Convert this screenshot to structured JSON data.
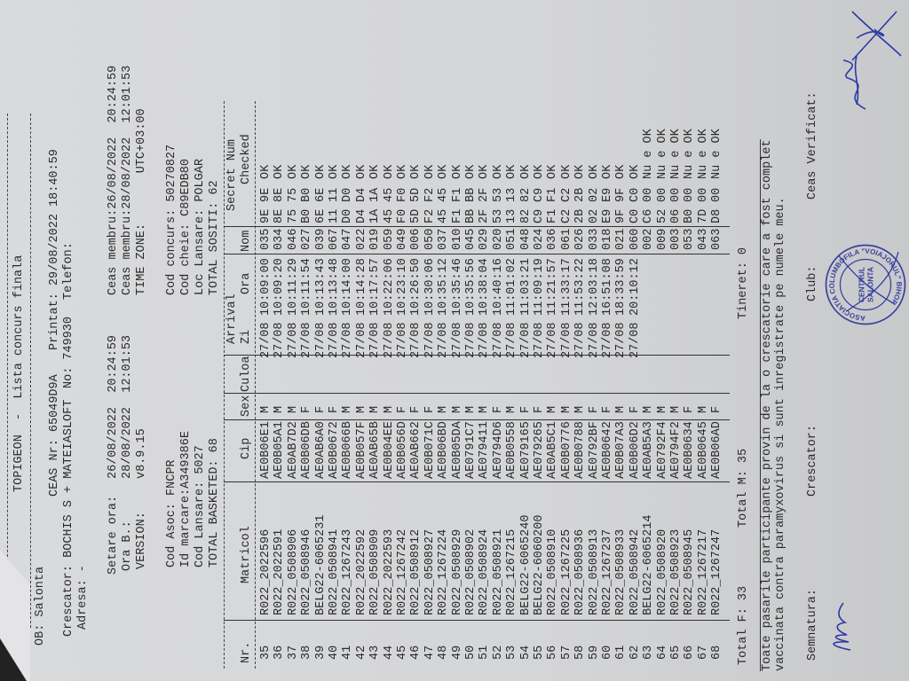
{
  "header": {
    "title": "TOPIGEON  -  Lista concurs finala",
    "club": "OB: Salonta",
    "crescator": "Crescator: BOCHIS S + MATEIASLOFT",
    "adresa": "Adresa: -",
    "ceas_nr": "CEAS Nr: 65049D9A",
    "no": "No: 749930",
    "printat": "Printat: 29/08/2022 18:40:59",
    "telefon": "Telefon:",
    "setare_ora_label": "Setare ora:",
    "setare_ora": "26/08/2022  20:24:59",
    "ora_b_label": "Ora B.:",
    "ora_b": "28/08/2022  12:01:53",
    "version_label": "VERSION:",
    "version": "v8.9.15",
    "ceas_membru_1": "Ceas membru:26/08/2022  20:24:59",
    "ceas_membru_2": "Ceas membru:28/08/2022  12:01:53",
    "time_zone": "TIME ZONE:       UTC+03:00",
    "cod_asoc": "Cod Asoc: FNCPR",
    "id_marcare": "Id marcare:A349386E",
    "cod_lansare": "Cod Lansare: 5027",
    "total_basketed": "TOTAL BASKETED: 68",
    "cod_concurs": "Cod concurs: 50270827",
    "cod_cheie": "Cod cheie: C89EDB80",
    "loc_lansare": "Loc Lansare: POLGAR",
    "total_sositi": "TOTAL SOSITI: 62"
  },
  "table": {
    "headers": {
      "nr": "Nr.",
      "matricol": "Matricol",
      "cip": "Cip",
      "sex": "Sex",
      "culoa": "Culoa",
      "arrival": "Arrival",
      "zi": "Zi",
      "ora": "Ora",
      "nom": "Nom",
      "secret": "Secret Num",
      "checked": "Checked"
    },
    "rows": [
      [
        "35",
        "R022_2022596",
        "AE0B06E1",
        "M",
        "",
        "27/08",
        "10:09:00",
        "035",
        "9E",
        "9E",
        "OK"
      ],
      [
        "36",
        "R022_2022591",
        "AE0B05A1",
        "M",
        "",
        "27/08",
        "10:09:20",
        "034",
        "8E",
        "8E",
        "OK"
      ],
      [
        "37",
        "R022_0508906",
        "AE0AB7D2",
        "M",
        "",
        "27/08",
        "10:11:29",
        "046",
        "75",
        "75",
        "OK"
      ],
      [
        "38",
        "R022_0508946",
        "AE0B06DB",
        "F",
        "",
        "27/08",
        "10:11:54",
        "027",
        "B0",
        "B0",
        "OK"
      ],
      [
        "39",
        "BELG22-6065231",
        "AE0AB6A0",
        "F",
        "",
        "27/08",
        "10:13:43",
        "039",
        "6E",
        "6E",
        "OK"
      ],
      [
        "40",
        "R022_0508941",
        "AE0B0672",
        "F",
        "",
        "27/08",
        "10:13:48",
        "067",
        "11",
        "11",
        "OK"
      ],
      [
        "41",
        "R022_1267243",
        "AE0B066B",
        "M",
        "",
        "27/08",
        "10:14:00",
        "047",
        "D0",
        "D0",
        "OK"
      ],
      [
        "42",
        "R022_2022592",
        "AE0B057F",
        "M",
        "",
        "27/08",
        "10:14:28",
        "022",
        "D4",
        "D4",
        "OK"
      ],
      [
        "43",
        "R022_0508909",
        "AE0AB65B",
        "M",
        "",
        "27/08",
        "10:17:57",
        "019",
        "1A",
        "1A",
        "OK"
      ],
      [
        "44",
        "R022_2022593",
        "AE0B04EE",
        "M",
        "",
        "27/08",
        "10:22:06",
        "059",
        "45",
        "45",
        "OK"
      ],
      [
        "45",
        "R022_1267242",
        "AE0B056D",
        "F",
        "",
        "27/08",
        "10:23:10",
        "049",
        "F0",
        "F0",
        "OK"
      ],
      [
        "46",
        "R022_0508912",
        "AE0AB662",
        "F",
        "",
        "27/08",
        "10:26:50",
        "006",
        "5D",
        "5D",
        "OK"
      ],
      [
        "47",
        "R022_0508927",
        "AE0B071C",
        "F",
        "",
        "27/08",
        "10:30:06",
        "050",
        "F2",
        "F2",
        "OK"
      ],
      [
        "48",
        "R022_1267224",
        "AE0B06BD",
        "M",
        "",
        "27/08",
        "10:35:12",
        "037",
        "45",
        "45",
        "OK"
      ],
      [
        "49",
        "R022_0508929",
        "AE0B05DA",
        "M",
        "",
        "27/08",
        "10:35:46",
        "010",
        "F1",
        "F1",
        "OK"
      ],
      [
        "50",
        "R022_0508902",
        "AE0791C7",
        "M",
        "",
        "27/08",
        "10:35:56",
        "045",
        "BB",
        "BB",
        "OK"
      ],
      [
        "51",
        "R022_0508924",
        "AE079411",
        "M",
        "",
        "27/08",
        "10:38:04",
        "029",
        "2F",
        "2F",
        "OK"
      ],
      [
        "52",
        "R022_0508921",
        "AE0794D6",
        "F",
        "",
        "27/08",
        "10:40:16",
        "020",
        "53",
        "53",
        "OK"
      ],
      [
        "53",
        "R022_1267215",
        "AE0B0558",
        "M",
        "",
        "27/08",
        "11:01:02",
        "051",
        "13",
        "13",
        "OK"
      ],
      [
        "54",
        "BELG22-6065240",
        "AE079165",
        "F",
        "",
        "27/08",
        "11:03:21",
        "048",
        "82",
        "82",
        "OK"
      ],
      [
        "55",
        "BELG22-6060200",
        "AE079265",
        "F",
        "",
        "27/08",
        "11:09:19",
        "024",
        "C9",
        "C9",
        "OK"
      ],
      [
        "56",
        "R022_0508910",
        "AE0AB5C1",
        "M",
        "",
        "27/08",
        "11:21:57",
        "036",
        "F1",
        "F1",
        "OK"
      ],
      [
        "57",
        "R022_1267225",
        "AE0B0776",
        "M",
        "",
        "27/08",
        "11:33:17",
        "061",
        "C2",
        "C2",
        "OK"
      ],
      [
        "58",
        "R022_0508936",
        "AE0B0788",
        "M",
        "",
        "27/08",
        "11:53:22",
        "026",
        "2B",
        "2B",
        "OK"
      ],
      [
        "59",
        "R022_0508913",
        "AE0792BF",
        "F",
        "",
        "27/08",
        "12:03:18",
        "033",
        "02",
        "02",
        "OK"
      ],
      [
        "60",
        "R022_1267237",
        "AE0B0642",
        "F",
        "",
        "27/08",
        "16:51:08",
        "018",
        "E9",
        "E9",
        "OK"
      ],
      [
        "61",
        "R022_0508933",
        "AE0B07A3",
        "M",
        "",
        "27/08",
        "18:33:59",
        "021",
        "9F",
        "9F",
        "OK"
      ],
      [
        "62",
        "R022_0508942",
        "AE0B06D2",
        "F",
        "",
        "27/08",
        "20:10:12",
        "060",
        "C0",
        "C0",
        "OK"
      ],
      [
        "63",
        "BELG22-6065214",
        "AE0AB5A3",
        "M",
        "",
        "",
        "",
        "002",
        "C6",
        "00",
        "Nu e OK"
      ],
      [
        "64",
        "R022_0508920",
        "AE0792F4",
        "M",
        "",
        "",
        "",
        "009",
        "52",
        "00",
        "Nu e OK"
      ],
      [
        "65",
        "R022_0508923",
        "AE0794F2",
        "M",
        "",
        "",
        "",
        "003",
        "06",
        "00",
        "Nu e OK"
      ],
      [
        "66",
        "R022_0508945",
        "AE0B0634",
        "F",
        "",
        "",
        "",
        "053",
        "B0",
        "00",
        "Nu e OK"
      ],
      [
        "67",
        "R022_1267217",
        "AE0B0645",
        "M",
        "",
        "",
        "",
        "043",
        "7D",
        "00",
        "Nu e OK"
      ],
      [
        "68",
        "R022_1267247",
        "AE0B06AD",
        "F",
        "",
        "",
        "",
        "063",
        "D8",
        "00",
        "Nu e OK"
      ]
    ]
  },
  "footer": {
    "total_f": "Total F: 33",
    "total_m": "Total M: 35",
    "tineret": "Tineret: 0",
    "notice_1": "Toate pasarile participante provin de la o crescatorie care a fost complet",
    "notice_2": "vaccinata contra paramyxovirus si sunt inregistrate pe numele meu.",
    "semnatura": "Semnatura:",
    "crescator": "Crescator:",
    "club": "Club:",
    "ceas_verificat": "Ceas Verificat:"
  },
  "stamp": {
    "text_top": "ASOCIATIA COLUMBOFILA \"VOIAJORUL\" BIHOR",
    "text_center_1": "CENTRUL",
    "text_center_2": "SALONTA",
    "ink_color": "#3a3f9a"
  },
  "colors": {
    "paper": "#d6d7d9",
    "ink": "#2a2a2a",
    "pen": "#2b3aa8",
    "cloth": "#c23a4a"
  }
}
